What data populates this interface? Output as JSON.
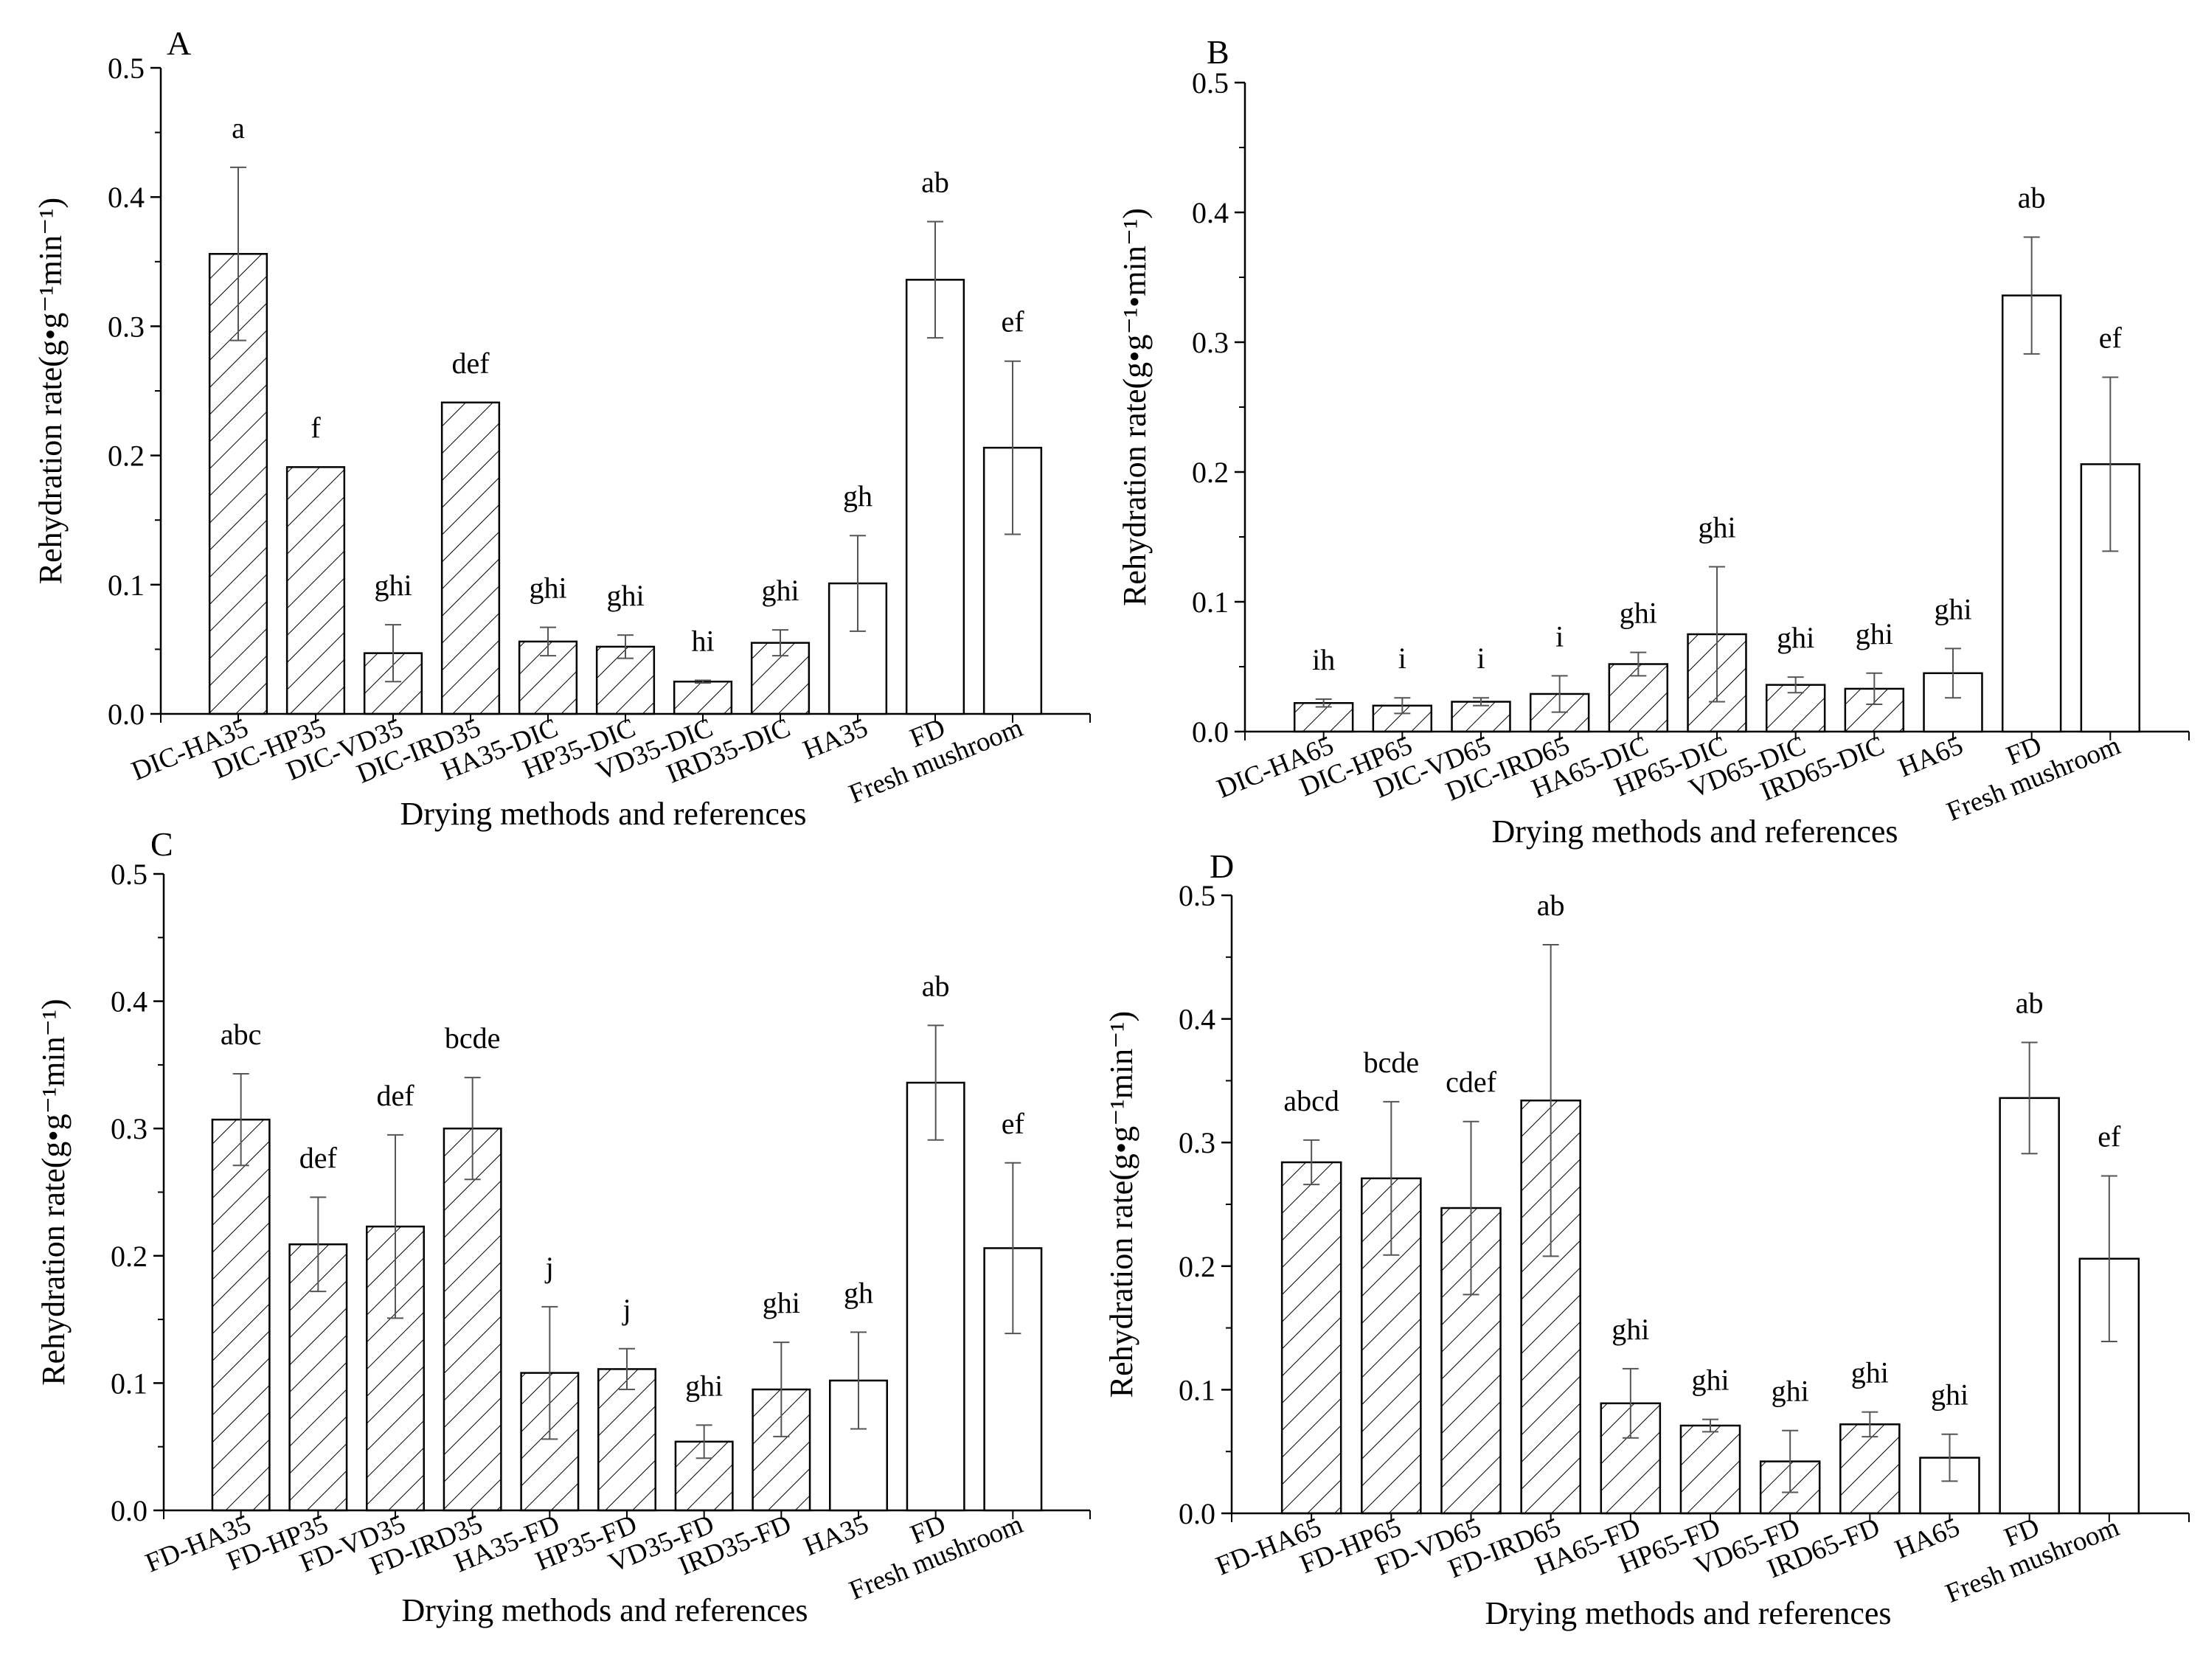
{
  "figure": {
    "hatch_color": "#000000",
    "bar_stroke": "#000000",
    "background": "#ffffff"
  },
  "chart_data": [
    {
      "panel": "A",
      "type": "bar",
      "xlabel": "Drying methods and references",
      "ylabel": "Rehydration rate(g•g⁻¹min⁻¹)",
      "ylim": [
        0,
        0.5
      ],
      "yticks": [
        "0.0",
        "0.1",
        "0.2",
        "0.3",
        "0.4",
        "0.5"
      ],
      "categories": [
        "DIC-HA35",
        "DIC-HP35",
        "DIC-VD35",
        "DIC-IRD35",
        "HA35-DIC",
        "HP35-DIC",
        "VD35-DIC",
        "IRD35-DIC",
        "HA35",
        "FD",
        "Fresh mushroom"
      ],
      "values": [
        0.356,
        0.191,
        0.047,
        0.241,
        0.056,
        0.052,
        0.025,
        0.055,
        0.101,
        0.336,
        0.206
      ],
      "errors": [
        0.067,
        0.0,
        0.022,
        0.0,
        0.011,
        0.009,
        0.001,
        0.01,
        0.037,
        0.045,
        0.067
      ],
      "letters": [
        "a",
        "f",
        "ghi",
        "def",
        "ghi",
        "ghi",
        "hi",
        "ghi",
        "gh",
        "ab",
        "ef"
      ],
      "hatched": [
        true,
        true,
        true,
        true,
        true,
        true,
        true,
        true,
        false,
        false,
        false
      ]
    },
    {
      "panel": "B",
      "type": "bar",
      "xlabel": "Drying methods and references",
      "ylabel": "Rehydration rate(g•g⁻¹•min⁻¹)",
      "ylim": [
        0,
        0.5
      ],
      "yticks": [
        "0.0",
        "0.1",
        "0.2",
        "0.3",
        "0.4",
        "0.5"
      ],
      "categories": [
        "DIC-HA65",
        "DIC-HP65",
        "DIC-VD65",
        "DIC-IRD65",
        "HA65-DIC",
        "HP65-DIC",
        "VD65-DIC",
        "IRD65-DIC",
        "HA65",
        "FD",
        "Fresh mushroom"
      ],
      "values": [
        0.022,
        0.02,
        0.023,
        0.029,
        0.052,
        0.075,
        0.036,
        0.033,
        0.045,
        0.336,
        0.206
      ],
      "errors": [
        0.003,
        0.006,
        0.003,
        0.014,
        0.009,
        0.052,
        0.006,
        0.012,
        0.019,
        0.045,
        0.067
      ],
      "letters": [
        "ih",
        "i",
        "i",
        "i",
        "ghi",
        "ghi",
        "ghi",
        "ghi",
        "ghi",
        "ab",
        "ef"
      ],
      "hatched": [
        true,
        true,
        true,
        true,
        true,
        true,
        true,
        true,
        false,
        false,
        false
      ]
    },
    {
      "panel": "C",
      "type": "bar",
      "xlabel": "Drying methods and references",
      "ylabel": "Rehydration rate(g•g⁻¹min⁻¹)",
      "ylim": [
        0,
        0.5
      ],
      "yticks": [
        "0.0",
        "0.1",
        "0.2",
        "0.3",
        "0.4",
        "0.5"
      ],
      "categories": [
        "FD-HA35",
        "FD-HP35",
        "FD-VD35",
        "FD-IRD35",
        "HA35-FD",
        "HP35-FD",
        "VD35-FD",
        "IRD35-FD",
        "HA35",
        "FD",
        "Fresh mushroom"
      ],
      "values": [
        0.307,
        0.209,
        0.223,
        0.3,
        0.108,
        0.111,
        0.054,
        0.095,
        0.102,
        0.336,
        0.206
      ],
      "errors": [
        0.036,
        0.037,
        0.072,
        0.04,
        0.052,
        0.016,
        0.013,
        0.037,
        0.038,
        0.045,
        0.067
      ],
      "letters": [
        "abc",
        "def",
        "def",
        "bcde",
        "j",
        "j",
        "ghi",
        "ghi",
        "gh",
        "ab",
        "ef"
      ],
      "hatched": [
        true,
        true,
        true,
        true,
        true,
        true,
        true,
        true,
        false,
        false,
        false
      ]
    },
    {
      "panel": "D",
      "type": "bar",
      "xlabel": "Drying methods and references",
      "ylabel": "Rehydration rate(g•g⁻¹min⁻¹)",
      "ylim": [
        0,
        0.5
      ],
      "yticks": [
        "0.0",
        "0.1",
        "0.2",
        "0.3",
        "0.4",
        "0.5"
      ],
      "categories": [
        "FD-HA65",
        "FD-HP65",
        "FD-VD65",
        "FD-IRD65",
        "HA65-FD",
        "HP65-FD",
        "VD65-FD",
        "IRD65-FD",
        "HA65",
        "FD",
        "Fresh mushroom"
      ],
      "values": [
        0.284,
        0.271,
        0.247,
        0.334,
        0.089,
        0.071,
        0.042,
        0.072,
        0.045,
        0.336,
        0.206
      ],
      "errors": [
        0.018,
        0.062,
        0.07,
        0.126,
        0.028,
        0.005,
        0.025,
        0.01,
        0.019,
        0.045,
        0.067
      ],
      "letters": [
        "abcd",
        "bcde",
        "cdef",
        "ab",
        "ghi",
        "ghi",
        "ghi",
        "ghi",
        "ghi",
        "ab",
        "ef"
      ],
      "hatched": [
        true,
        true,
        true,
        true,
        true,
        true,
        true,
        true,
        false,
        false,
        false
      ]
    }
  ]
}
